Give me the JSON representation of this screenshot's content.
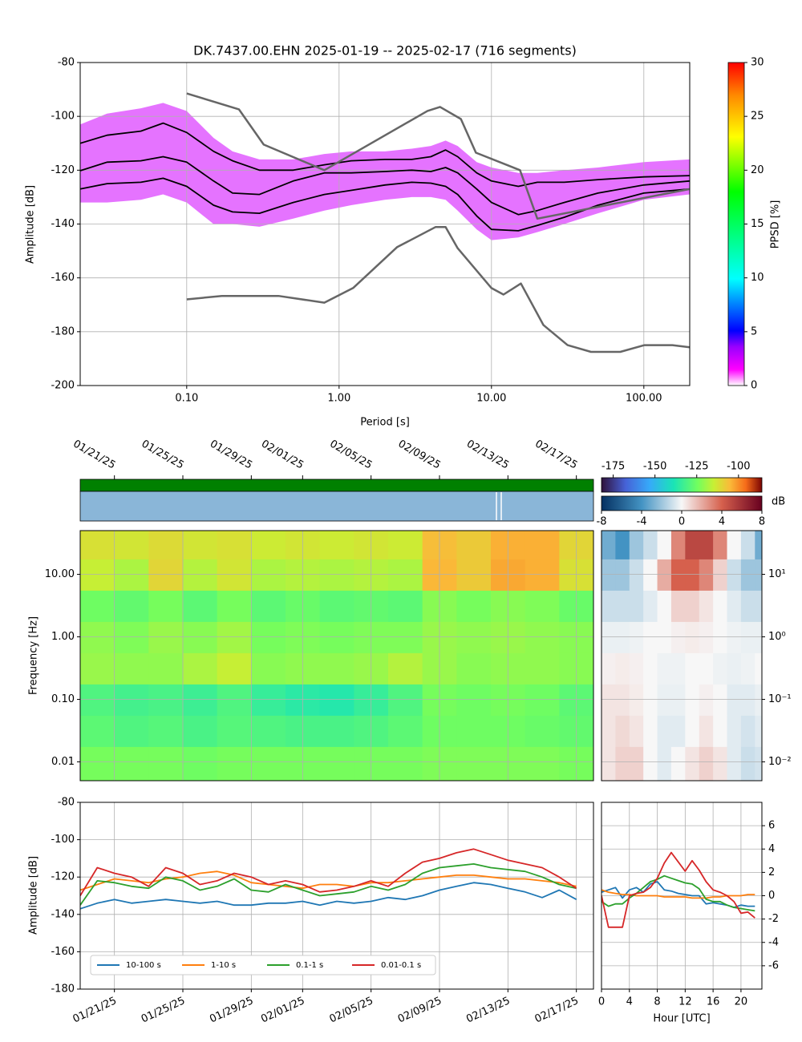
{
  "chart_data": [
    {
      "type": "line",
      "title": "DK.7437.00.EHN   2025-01-19 -- 2025-02-17  (716 segments)",
      "xlabel": "Period [s]",
      "ylabel": "Amplitude [dB]",
      "xscale": "log",
      "grid": true,
      "xlim": [
        0.02,
        200
      ],
      "ylim": [
        -200,
        -80
      ],
      "xticks": [
        {
          "value": 0.1,
          "label": "0.10"
        },
        {
          "value": 1,
          "label": "1.00"
        },
        {
          "value": 10,
          "label": "10.00"
        },
        {
          "value": 100,
          "label": "100.00"
        }
      ],
      "yticks": [
        -200,
        -180,
        -160,
        -140,
        -120,
        -100,
        -80
      ],
      "colormap": "pqlx",
      "clim": [
        0,
        30
      ],
      "cticks": [
        0,
        5,
        10,
        15,
        20,
        25,
        30
      ],
      "colorbar_label": "PPSD [%]",
      "x": [
        0.02,
        0.03,
        0.05,
        0.07,
        0.1,
        0.15,
        0.2,
        0.3,
        0.5,
        0.8,
        1.2,
        2,
        3,
        4,
        5,
        6,
        8,
        10,
        15,
        20,
        30,
        50,
        100,
        200
      ],
      "band": {
        "color": "#d000ff",
        "upper": [
          -103,
          -99,
          -97,
          -95,
          -98,
          -108,
          -113,
          -116,
          -116,
          -114,
          -113,
          -113,
          -112,
          -111,
          -109,
          -111,
          -117,
          -119,
          -121,
          -121,
          -120,
          -119,
          -117,
          -116
        ],
        "lower": [
          -132,
          -132,
          -131,
          -129,
          -132,
          -140,
          -140,
          -141,
          -138,
          -135,
          -133,
          -131,
          -130,
          -130,
          -131,
          -135,
          -142,
          -146,
          -145,
          -143,
          -140,
          -136,
          -131,
          -129
        ]
      },
      "series": [
        {
          "color": "#000000",
          "values": [
            -110,
            -107,
            -105.5,
            -102.5,
            -106,
            -113,
            -116.5,
            -120,
            -120,
            -118,
            -116.5,
            -116,
            -116,
            -115,
            -112.5,
            -115,
            -121,
            -124,
            -126,
            -124.5,
            -124.5,
            -123.5,
            -122.5,
            -122
          ]
        },
        {
          "color": "#000000",
          "values": [
            -120.2,
            -117,
            -116.5,
            -115,
            -117,
            -124,
            -128.5,
            -129,
            -124,
            -121,
            -121,
            -120.5,
            -120,
            -120.5,
            -119,
            -121,
            -127,
            -132,
            -136.5,
            -135,
            -132,
            -128.5,
            -125.5,
            -124
          ]
        },
        {
          "color": "#000000",
          "values": [
            -127,
            -125,
            -124.5,
            -123,
            -126,
            -133,
            -135.5,
            -136,
            -132,
            -129,
            -127.5,
            -125.5,
            -124.5,
            -124.8,
            -126,
            -129,
            -137,
            -142,
            -142.5,
            -140.5,
            -137.5,
            -133,
            -128.5,
            -127
          ]
        },
        {
          "color": "#666666",
          "x": [
            0.1,
            0.22,
            0.32,
            0.8,
            3.8,
            4.6,
            6.3,
            7.9,
            15.4,
            20,
            200
          ],
          "values": [
            -91.5,
            -97.4,
            -110.5,
            -120,
            -98,
            -96.5,
            -101,
            -113.5,
            -120,
            -138,
            -127
          ]
        },
        {
          "color": "#666666",
          "x": [
            0.1,
            0.17,
            0.4,
            0.8,
            1.24,
            2.4,
            4.3,
            5,
            6,
            10,
            12,
            15.6,
            21.9,
            31.6,
            45,
            70,
            101,
            154,
            200
          ],
          "values": [
            -168,
            -166.7,
            -166.7,
            -169.2,
            -163.7,
            -148.6,
            -141.1,
            -141.1,
            -149,
            -163.8,
            -166.2,
            -162.1,
            -177.5,
            -185,
            -187.5,
            -187.5,
            -185,
            -185,
            -185.8
          ]
        }
      ]
    },
    {
      "type": "heatmap",
      "ylabel": "Frequency [Hz]",
      "yscale": "log",
      "grid": true,
      "xlim": [
        "2025-01-19",
        "2025-02-18"
      ],
      "ylim": [
        0.005,
        50
      ],
      "xticks": [
        {
          "value": "2025-01-21",
          "label": "01/21/25"
        },
        {
          "value": "2025-01-25",
          "label": "01/25/25"
        },
        {
          "value": "2025-01-29",
          "label": "01/29/25"
        },
        {
          "value": "2025-02-01",
          "label": "02/01/25"
        },
        {
          "value": "2025-02-05",
          "label": "02/05/25"
        },
        {
          "value": "2025-02-09",
          "label": "02/09/25"
        },
        {
          "value": "2025-02-13",
          "label": "02/13/25"
        },
        {
          "value": "2025-02-17",
          "label": "02/17/25"
        }
      ],
      "yticks": [
        0.01,
        {
          "value": 0.1,
          "label": "0.10"
        },
        {
          "value": 1,
          "label": "1.00"
        },
        {
          "value": 10,
          "label": "10.00"
        }
      ],
      "colormap": "turbo",
      "clim": [
        -182,
        -86
      ],
      "cticks": [
        -175,
        -150,
        -125,
        -100
      ],
      "x": [
        "2025-01-19",
        "2025-01-21",
        "2025-01-23",
        "2025-01-25",
        "2025-01-27",
        "2025-01-29",
        "2025-01-31",
        "2025-02-02",
        "2025-02-04",
        "2025-02-06",
        "2025-02-08",
        "2025-02-10",
        "2025-02-12",
        "2025-02-14",
        "2025-02-16"
      ],
      "y": [
        30,
        10,
        3,
        1,
        0.3,
        0.1,
        0.03,
        0.01
      ],
      "values": [
        [
          -112,
          -113,
          -111,
          -113,
          -112,
          -114,
          -113,
          -114,
          -113,
          -114,
          -106,
          -108,
          -104,
          -104,
          -110
        ],
        [
          -115,
          -118,
          -110,
          -117,
          -113,
          -118,
          -117,
          -118,
          -117,
          -118,
          -105,
          -108,
          -103,
          -104,
          -112
        ],
        [
          -125,
          -127,
          -124,
          -128,
          -124,
          -128,
          -126,
          -128,
          -127,
          -128,
          -122,
          -124,
          -122,
          -123,
          -126
        ],
        [
          -121,
          -123,
          -120,
          -122,
          -119,
          -124,
          -123,
          -124,
          -123,
          -123,
          -120,
          -121,
          -120,
          -121,
          -122
        ],
        [
          -120,
          -121,
          -121,
          -118,
          -115,
          -122,
          -121,
          -121,
          -120,
          -117,
          -120,
          -122,
          -121,
          -121,
          -122
        ],
        [
          -130,
          -132,
          -131,
          -133,
          -130,
          -134,
          -136,
          -137,
          -134,
          -130,
          -124,
          -125,
          -124,
          -125,
          -128
        ],
        [
          -128,
          -130,
          -129,
          -131,
          -129,
          -130,
          -131,
          -131,
          -130,
          -128,
          -125,
          -125,
          -125,
          -126,
          -127
        ],
        [
          -124,
          -124,
          -124,
          -125,
          -124,
          -124,
          -124,
          -124,
          -124,
          -124,
          -123,
          -123,
          -123,
          -123,
          -124
        ]
      ]
    },
    {
      "type": "heatmap",
      "yscale": "log",
      "xlim": [
        0,
        23
      ],
      "ylim": [
        0.005,
        50
      ],
      "yticks": [
        {
          "value": 0.01,
          "label": "10⁻²"
        },
        {
          "value": 0.1,
          "label": "10⁻¹"
        },
        {
          "value": 1,
          "label": "10⁰"
        },
        {
          "value": 10,
          "label": "10¹"
        }
      ],
      "colormap": "RdBu_r",
      "clim": [
        -8,
        8
      ],
      "cticks": [
        -8,
        -4,
        0,
        4,
        8
      ],
      "colorbar_label": "dB",
      "x": [
        0,
        2,
        4,
        6,
        8,
        10,
        12,
        14,
        16,
        18,
        20,
        22
      ],
      "y": [
        30,
        10,
        3,
        1,
        0.3,
        0.1,
        0.03,
        0.01
      ],
      "values": [
        [
          -3,
          -4,
          -2,
          -1,
          0,
          3,
          5,
          5,
          3,
          0,
          -1,
          -3
        ],
        [
          -2,
          -2,
          -1,
          0,
          2,
          4,
          4,
          3,
          1,
          -1,
          -2,
          -2
        ],
        [
          -1,
          -1,
          -1,
          -0.5,
          0,
          1,
          1,
          0.5,
          0,
          -0.5,
          -1,
          -1
        ],
        [
          -0.3,
          -0.3,
          -0.2,
          0,
          0,
          0.2,
          0.3,
          0.2,
          0,
          -0.2,
          -0.3,
          -0.3
        ],
        [
          0.2,
          0.3,
          0.2,
          0,
          -0.2,
          -0.2,
          0,
          0,
          -0.2,
          -0.3,
          -0.2,
          0
        ],
        [
          0.5,
          0.5,
          0.3,
          0,
          -0.3,
          -0.3,
          0,
          0.2,
          0,
          -0.5,
          -0.5,
          -0.3
        ],
        [
          0.5,
          0.8,
          0.5,
          0,
          -0.5,
          -0.5,
          0,
          0.5,
          0,
          -0.5,
          -0.8,
          -0.5
        ],
        [
          0.5,
          1,
          1,
          0,
          -0.5,
          0,
          0.5,
          1,
          0.5,
          -0.5,
          -1,
          -0.8
        ]
      ]
    },
    {
      "type": "line",
      "ylabel": "Amplitude [dB]",
      "grid": true,
      "legend": "lower left",
      "xlim": [
        "2025-01-19",
        "2025-02-18"
      ],
      "ylim": [
        -180,
        -80
      ],
      "xticks": [
        {
          "value": "2025-01-21",
          "label": "01/21/25"
        },
        {
          "value": "2025-01-25",
          "label": "01/25/25"
        },
        {
          "value": "2025-01-29",
          "label": "01/29/25"
        },
        {
          "value": "2025-02-01",
          "label": "02/01/25"
        },
        {
          "value": "2025-02-05",
          "label": "02/05/25"
        },
        {
          "value": "2025-02-09",
          "label": "02/09/25"
        },
        {
          "value": "2025-02-13",
          "label": "02/13/25"
        },
        {
          "value": "2025-02-17",
          "label": "02/17/25"
        }
      ],
      "yticks": [
        -180,
        -160,
        -140,
        -120,
        -100,
        -80
      ],
      "x": [
        "2025-01-19",
        "2025-01-20",
        "2025-01-21",
        "2025-01-22",
        "2025-01-23",
        "2025-01-24",
        "2025-01-25",
        "2025-01-26",
        "2025-01-27",
        "2025-01-28",
        "2025-01-29",
        "2025-01-30",
        "2025-01-31",
        "2025-02-01",
        "2025-02-02",
        "2025-02-03",
        "2025-02-04",
        "2025-02-05",
        "2025-02-06",
        "2025-02-07",
        "2025-02-08",
        "2025-02-09",
        "2025-02-10",
        "2025-02-11",
        "2025-02-12",
        "2025-02-13",
        "2025-02-14",
        "2025-02-15",
        "2025-02-16",
        "2025-02-17"
      ],
      "series": [
        {
          "name": "10-100 s",
          "color": "#1f77b4",
          "values": [
            -137,
            -134,
            -132,
            -134,
            -133,
            -132,
            -133,
            -134,
            -133,
            -135,
            -135,
            -134,
            -134,
            -133,
            -135,
            -133,
            -134,
            -133,
            -131,
            -132,
            -130,
            -127,
            -125,
            -123,
            -124,
            -126,
            -128,
            -131,
            -127,
            -132
          ]
        },
        {
          "name": "1-10 s",
          "color": "#ff7f0e",
          "values": [
            -127,
            -124,
            -121,
            -122,
            -123,
            -121,
            -120,
            -118,
            -117,
            -119,
            -123,
            -124,
            -125,
            -126,
            -124,
            -124,
            -125,
            -123,
            -123,
            -122,
            -121,
            -120,
            -119,
            -119,
            -120,
            -121,
            -121,
            -122,
            -123,
            -125
          ]
        },
        {
          "name": "0.1-1 s",
          "color": "#2ca02c",
          "values": [
            -135,
            -122,
            -123,
            -125,
            -126,
            -120,
            -122,
            -127,
            -125,
            -121,
            -127,
            -128,
            -124,
            -127,
            -130,
            -129,
            -128,
            -125,
            -127,
            -124,
            -118,
            -115,
            -114,
            -113,
            -115,
            -116,
            -117,
            -120,
            -124,
            -126
          ]
        },
        {
          "name": "0.01-0.1 s",
          "color": "#d62728",
          "values": [
            -130,
            -115,
            -118,
            -120,
            -125,
            -115,
            -118,
            -124,
            -122,
            -118,
            -120,
            -124,
            -122,
            -124,
            -128,
            -127,
            -125,
            -122,
            -125,
            -118,
            -112,
            -110,
            -107,
            -105,
            -108,
            -111,
            -113,
            -115,
            -120,
            -126
          ]
        }
      ]
    },
    {
      "type": "line",
      "xlabel": "Hour [UTC]",
      "grid": true,
      "xlim": [
        0,
        23
      ],
      "ylim": [
        -8,
        8
      ],
      "xticks": [
        0,
        4,
        8,
        12,
        16,
        20
      ],
      "yticks": [
        -6,
        -4,
        -2,
        0,
        2,
        4,
        6
      ],
      "x": [
        0,
        1,
        2,
        3,
        4,
        5,
        6,
        7,
        8,
        9,
        10,
        11,
        12,
        13,
        14,
        15,
        16,
        17,
        18,
        19,
        20,
        21,
        22
      ],
      "series": [
        {
          "color": "#1f77b4",
          "values": [
            0.3,
            0.5,
            0.7,
            -0.2,
            0.5,
            0.7,
            0.3,
            1,
            1.2,
            0.5,
            0.4,
            0.2,
            0.1,
            0,
            0,
            -0.7,
            -0.6,
            -0.7,
            -0.8,
            -1,
            -0.8,
            -0.9,
            -0.9
          ]
        },
        {
          "color": "#ff7f0e",
          "values": [
            0.5,
            0.3,
            0.2,
            0.1,
            0.1,
            0,
            0,
            0,
            0,
            -0.1,
            -0.1,
            -0.1,
            -0.1,
            -0.2,
            -0.2,
            -0.2,
            -0.1,
            -0.1,
            0,
            0,
            0,
            0.1,
            0.1
          ]
        },
        {
          "color": "#2ca02c",
          "values": [
            -0.5,
            -0.9,
            -0.7,
            -0.7,
            -0.2,
            0.2,
            0.7,
            1.2,
            1.4,
            1.7,
            1.5,
            1.3,
            1.1,
            1,
            0.6,
            -0.3,
            -0.5,
            -0.5,
            -0.8,
            -1,
            -1.1,
            -1.2,
            -1.3
          ]
        },
        {
          "color": "#d62728",
          "values": [
            0,
            -2.7,
            -2.7,
            -2.7,
            0,
            0.2,
            0.3,
            0.7,
            1.5,
            2.8,
            3.7,
            2.9,
            2.1,
            3,
            2.2,
            1.2,
            0.5,
            0.3,
            0,
            -0.5,
            -1.5,
            -1.4,
            -1.9
          ]
        }
      ]
    }
  ]
}
